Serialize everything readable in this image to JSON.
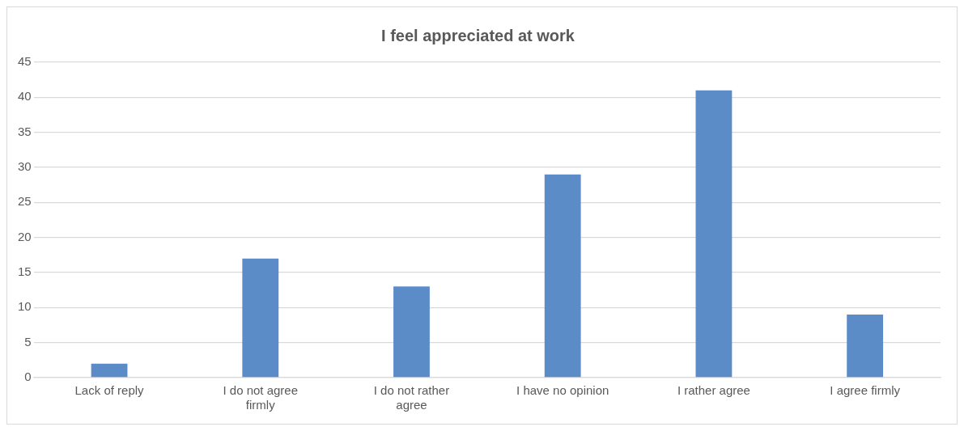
{
  "chart_data": {
    "type": "bar",
    "title": "I feel appreciated at work",
    "categories": [
      "Lack of reply",
      "I do not agree firmly",
      "I do not rather agree",
      "I have no opinion",
      "I rather agree",
      "I agree firmly"
    ],
    "values": [
      2,
      17,
      13,
      29,
      41,
      9
    ],
    "color": "#5b8cc8",
    "ylim": [
      0,
      45
    ],
    "yticks": [
      0,
      5,
      10,
      15,
      20,
      25,
      30,
      35,
      40,
      45
    ],
    "grid": "y",
    "legend": false
  }
}
